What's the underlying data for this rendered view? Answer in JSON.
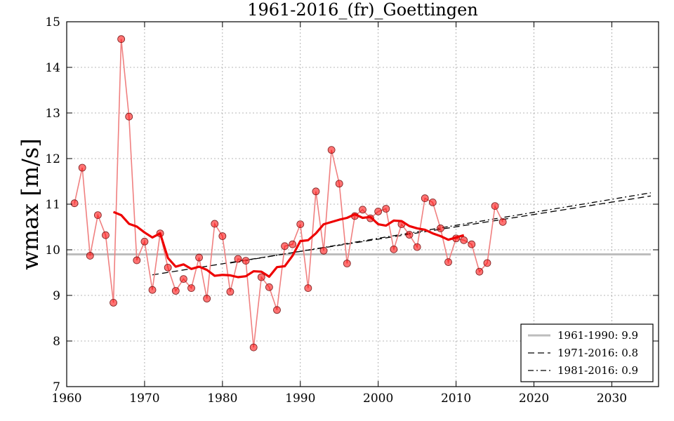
{
  "chart_data": {
    "type": "line",
    "title": "1961-2016_(fr)_Goettingen",
    "xlabel": "",
    "ylabel": "wmax [m/s]",
    "xlim": [
      1960,
      2036
    ],
    "ylim": [
      7,
      15
    ],
    "xticks": [
      1960,
      1970,
      1980,
      1990,
      2000,
      2010,
      2020,
      2030
    ],
    "yticks": [
      7,
      8,
      9,
      10,
      11,
      12,
      13,
      14,
      15
    ],
    "grid": true,
    "legend_position": "bottom-right",
    "colors": {
      "observations": "#ff0000",
      "observations_line": "#f08080",
      "smoothed": "#ee0000",
      "reference": "#bdbdbd",
      "trend": "#000000"
    },
    "series": [
      {
        "kind": "observations",
        "x": [
          1961,
          1962,
          1963,
          1964,
          1965,
          1966,
          1967,
          1968,
          1969,
          1970,
          1971,
          1972,
          1973,
          1974,
          1975,
          1976,
          1977,
          1978,
          1979,
          1980,
          1981,
          1982,
          1983,
          1984,
          1985,
          1986,
          1987,
          1988,
          1989,
          1990,
          1991,
          1992,
          1993,
          1994,
          1995,
          1996,
          1997,
          1998,
          1999,
          2000,
          2001,
          2002,
          2003,
          2004,
          2005,
          2006,
          2007,
          2008,
          2009,
          2010,
          2011,
          2012,
          2013,
          2014,
          2015,
          2016
        ],
        "values": [
          11.02,
          11.8,
          9.87,
          10.76,
          10.32,
          8.84,
          14.62,
          12.92,
          9.77,
          10.18,
          9.12,
          10.36,
          9.61,
          9.1,
          9.36,
          9.16,
          9.83,
          8.93,
          10.57,
          10.3,
          9.08,
          9.8,
          9.76,
          7.86,
          9.4,
          9.18,
          8.68,
          10.08,
          10.12,
          10.56,
          9.16,
          11.28,
          9.98,
          12.19,
          11.45,
          9.7,
          10.74,
          10.88,
          10.69,
          10.84,
          10.9,
          10.01,
          10.56,
          10.33,
          10.06,
          11.13,
          11.04,
          10.47,
          9.73,
          10.25,
          10.21,
          10.12,
          9.52,
          9.71,
          10.96,
          10.61
        ]
      },
      {
        "kind": "smoothed",
        "x": [
          1966,
          1967,
          1968,
          1969,
          1970,
          1971,
          1972,
          1973,
          1974,
          1975,
          1976,
          1977,
          1978,
          1979,
          1980,
          1981,
          1982,
          1983,
          1984,
          1985,
          1986,
          1987,
          1988,
          1989,
          1990,
          1991,
          1992,
          1993,
          1994,
          1995,
          1996,
          1997,
          1998,
          1999,
          2000,
          2001,
          2002,
          2003,
          2004,
          2005,
          2006,
          2007,
          2008,
          2009,
          2010,
          2011
        ],
        "values": [
          10.83,
          10.76,
          10.57,
          10.51,
          10.38,
          10.27,
          10.36,
          9.82,
          9.63,
          9.68,
          9.58,
          9.63,
          9.56,
          9.43,
          9.45,
          9.44,
          9.4,
          9.42,
          9.53,
          9.52,
          9.41,
          9.62,
          9.64,
          9.87,
          10.19,
          10.21,
          10.36,
          10.56,
          10.61,
          10.66,
          10.7,
          10.78,
          10.7,
          10.72,
          10.56,
          10.53,
          10.64,
          10.63,
          10.52,
          10.47,
          10.44,
          10.36,
          10.3,
          10.22,
          10.27,
          10.32
        ]
      }
    ],
    "reference": {
      "label": "1961-1990: 9.9",
      "value": 9.9,
      "x": [
        1960,
        2035
      ]
    },
    "trends": [
      {
        "label": "1971-2016: 0.8",
        "style": "dashed",
        "x": [
          1971,
          2035
        ],
        "values": [
          9.45,
          11.18
        ]
      },
      {
        "label": "1981-2016: 0.9",
        "style": "dashdot",
        "x": [
          1981,
          2035
        ],
        "values": [
          9.71,
          11.25
        ]
      }
    ]
  }
}
